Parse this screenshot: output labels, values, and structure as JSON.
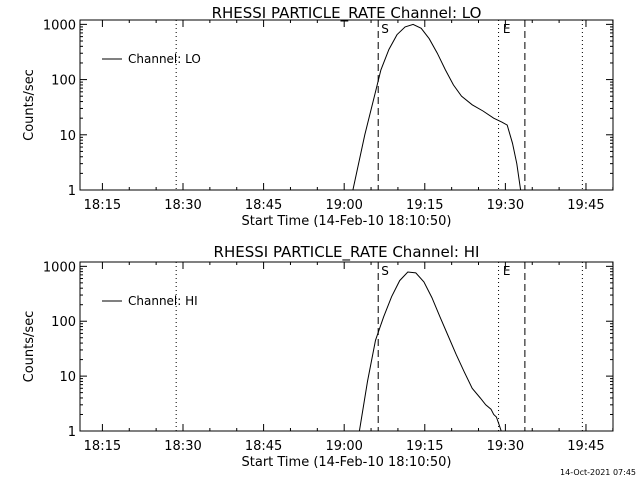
{
  "footer_stamp": "14-Oct-2021 07:45",
  "chart_data": [
    {
      "type": "line",
      "title": "RHESSI PARTICLE_RATE Channel: LO",
      "xlabel": "Start Time (14-Feb-10 18:10:50)",
      "ylabel": "Counts/sec",
      "y_scale": "log",
      "ylim": [
        1,
        1200
      ],
      "y_ticks": [
        1,
        10,
        100,
        1000
      ],
      "y_tick_labels": [
        "1",
        "10",
        "100",
        "1000"
      ],
      "x_unit": "minutes after 18:10:50",
      "xlim": [
        0,
        99.2
      ],
      "x_ticks": [
        4.17,
        19.17,
        34.17,
        49.17,
        64.17,
        79.17,
        94.17
      ],
      "x_tick_labels": [
        "18:15",
        "18:30",
        "18:45",
        "19:00",
        "19:15",
        "19:30",
        "19:45"
      ],
      "legend": "Channel: LO",
      "legend_position": "top-left",
      "dashed_lines": [
        {
          "x": 55.5,
          "label": "S"
        },
        {
          "x": 82.8,
          "label": "E"
        }
      ],
      "dotted_lines": [
        17.9,
        77.9,
        93.5
      ],
      "series": [
        {
          "name": "Channel: LO",
          "x": [
            50.8,
            53.0,
            54.8,
            56.0,
            57.5,
            59.0,
            60.5,
            62.0,
            63.5,
            65.0,
            66.5,
            68.0,
            69.5,
            71.0,
            73.0,
            75.0,
            77.0,
            78.5,
            79.5,
            80.5,
            81.3,
            82.0
          ],
          "y": [
            1,
            10,
            50,
            150,
            350,
            650,
            900,
            1000,
            850,
            550,
            300,
            150,
            80,
            50,
            35,
            27,
            20,
            17,
            15,
            7,
            3,
            1
          ]
        }
      ]
    },
    {
      "type": "line",
      "title": "RHESSI PARTICLE_RATE Channel: HI",
      "xlabel": "Start Time (14-Feb-10 18:10:50)",
      "ylabel": "Counts/sec",
      "y_scale": "log",
      "ylim": [
        1,
        1200
      ],
      "y_ticks": [
        1,
        10,
        100,
        1000
      ],
      "y_tick_labels": [
        "1",
        "10",
        "100",
        "1000"
      ],
      "x_unit": "minutes after 18:10:50",
      "xlim": [
        0,
        99.2
      ],
      "x_ticks": [
        4.17,
        19.17,
        34.17,
        49.17,
        64.17,
        79.17,
        94.17
      ],
      "x_tick_labels": [
        "18:15",
        "18:30",
        "18:45",
        "19:00",
        "19:15",
        "19:30",
        "19:45"
      ],
      "legend": "Channel: HI",
      "legend_position": "top-left",
      "dashed_lines": [
        {
          "x": 55.5,
          "label": "S"
        },
        {
          "x": 82.8,
          "label": "E"
        }
      ],
      "dotted_lines": [
        17.9,
        77.9,
        93.5
      ],
      "series": [
        {
          "name": "Channel: HI",
          "x": [
            52.0,
            53.5,
            55.0,
            56.5,
            58.0,
            59.5,
            61.0,
            62.5,
            64.0,
            65.5,
            67.0,
            68.5,
            70.0,
            71.5,
            73.0,
            74.5,
            75.5,
            76.5,
            77.0,
            77.5,
            78.0,
            78.4
          ],
          "y": [
            1,
            8,
            45,
            120,
            280,
            550,
            790,
            760,
            520,
            270,
            120,
            55,
            25,
            12,
            6,
            4,
            3,
            2.5,
            2,
            1.8,
            1.3,
            1
          ]
        }
      ]
    }
  ]
}
